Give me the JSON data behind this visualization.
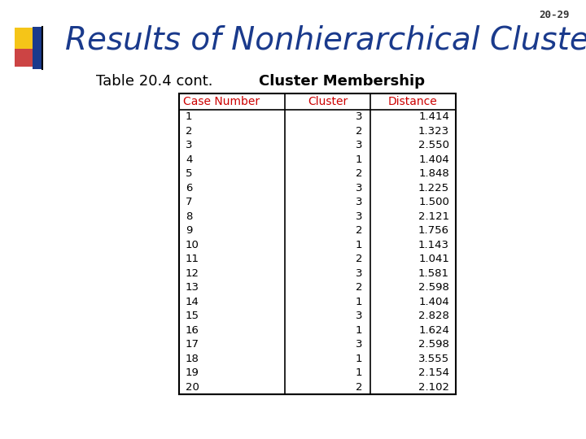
{
  "page_number": "20-29",
  "title": "Results of Nonhierarchical Clustering",
  "subtitle": "Table 20.4 cont.",
  "table_title": "Cluster Membership",
  "headers": [
    "Case Number",
    "Cluster",
    "Distance"
  ],
  "rows": [
    [
      1,
      3,
      "1.414"
    ],
    [
      2,
      2,
      "1.323"
    ],
    [
      3,
      3,
      "2.550"
    ],
    [
      4,
      1,
      "1.404"
    ],
    [
      5,
      2,
      "1.848"
    ],
    [
      6,
      3,
      "1.225"
    ],
    [
      7,
      3,
      "1.500"
    ],
    [
      8,
      3,
      "2.121"
    ],
    [
      9,
      2,
      "1.756"
    ],
    [
      10,
      1,
      "1.143"
    ],
    [
      11,
      2,
      "1.041"
    ],
    [
      12,
      3,
      "1.581"
    ],
    [
      13,
      2,
      "2.598"
    ],
    [
      14,
      1,
      "1.404"
    ],
    [
      15,
      3,
      "2.828"
    ],
    [
      16,
      1,
      "1.624"
    ],
    [
      17,
      3,
      "2.598"
    ],
    [
      18,
      1,
      "3.555"
    ],
    [
      19,
      1,
      "2.154"
    ],
    [
      20,
      2,
      "2.102"
    ]
  ],
  "header_color": "#cc0000",
  "title_color": "#1a3a8c",
  "bg_color": "#ffffff",
  "slide_bg": "#f0f0f0",
  "logo_colors": [
    "#f5c518",
    "#cc0000",
    "#1a3a8c"
  ],
  "page_num_color": "#333333"
}
